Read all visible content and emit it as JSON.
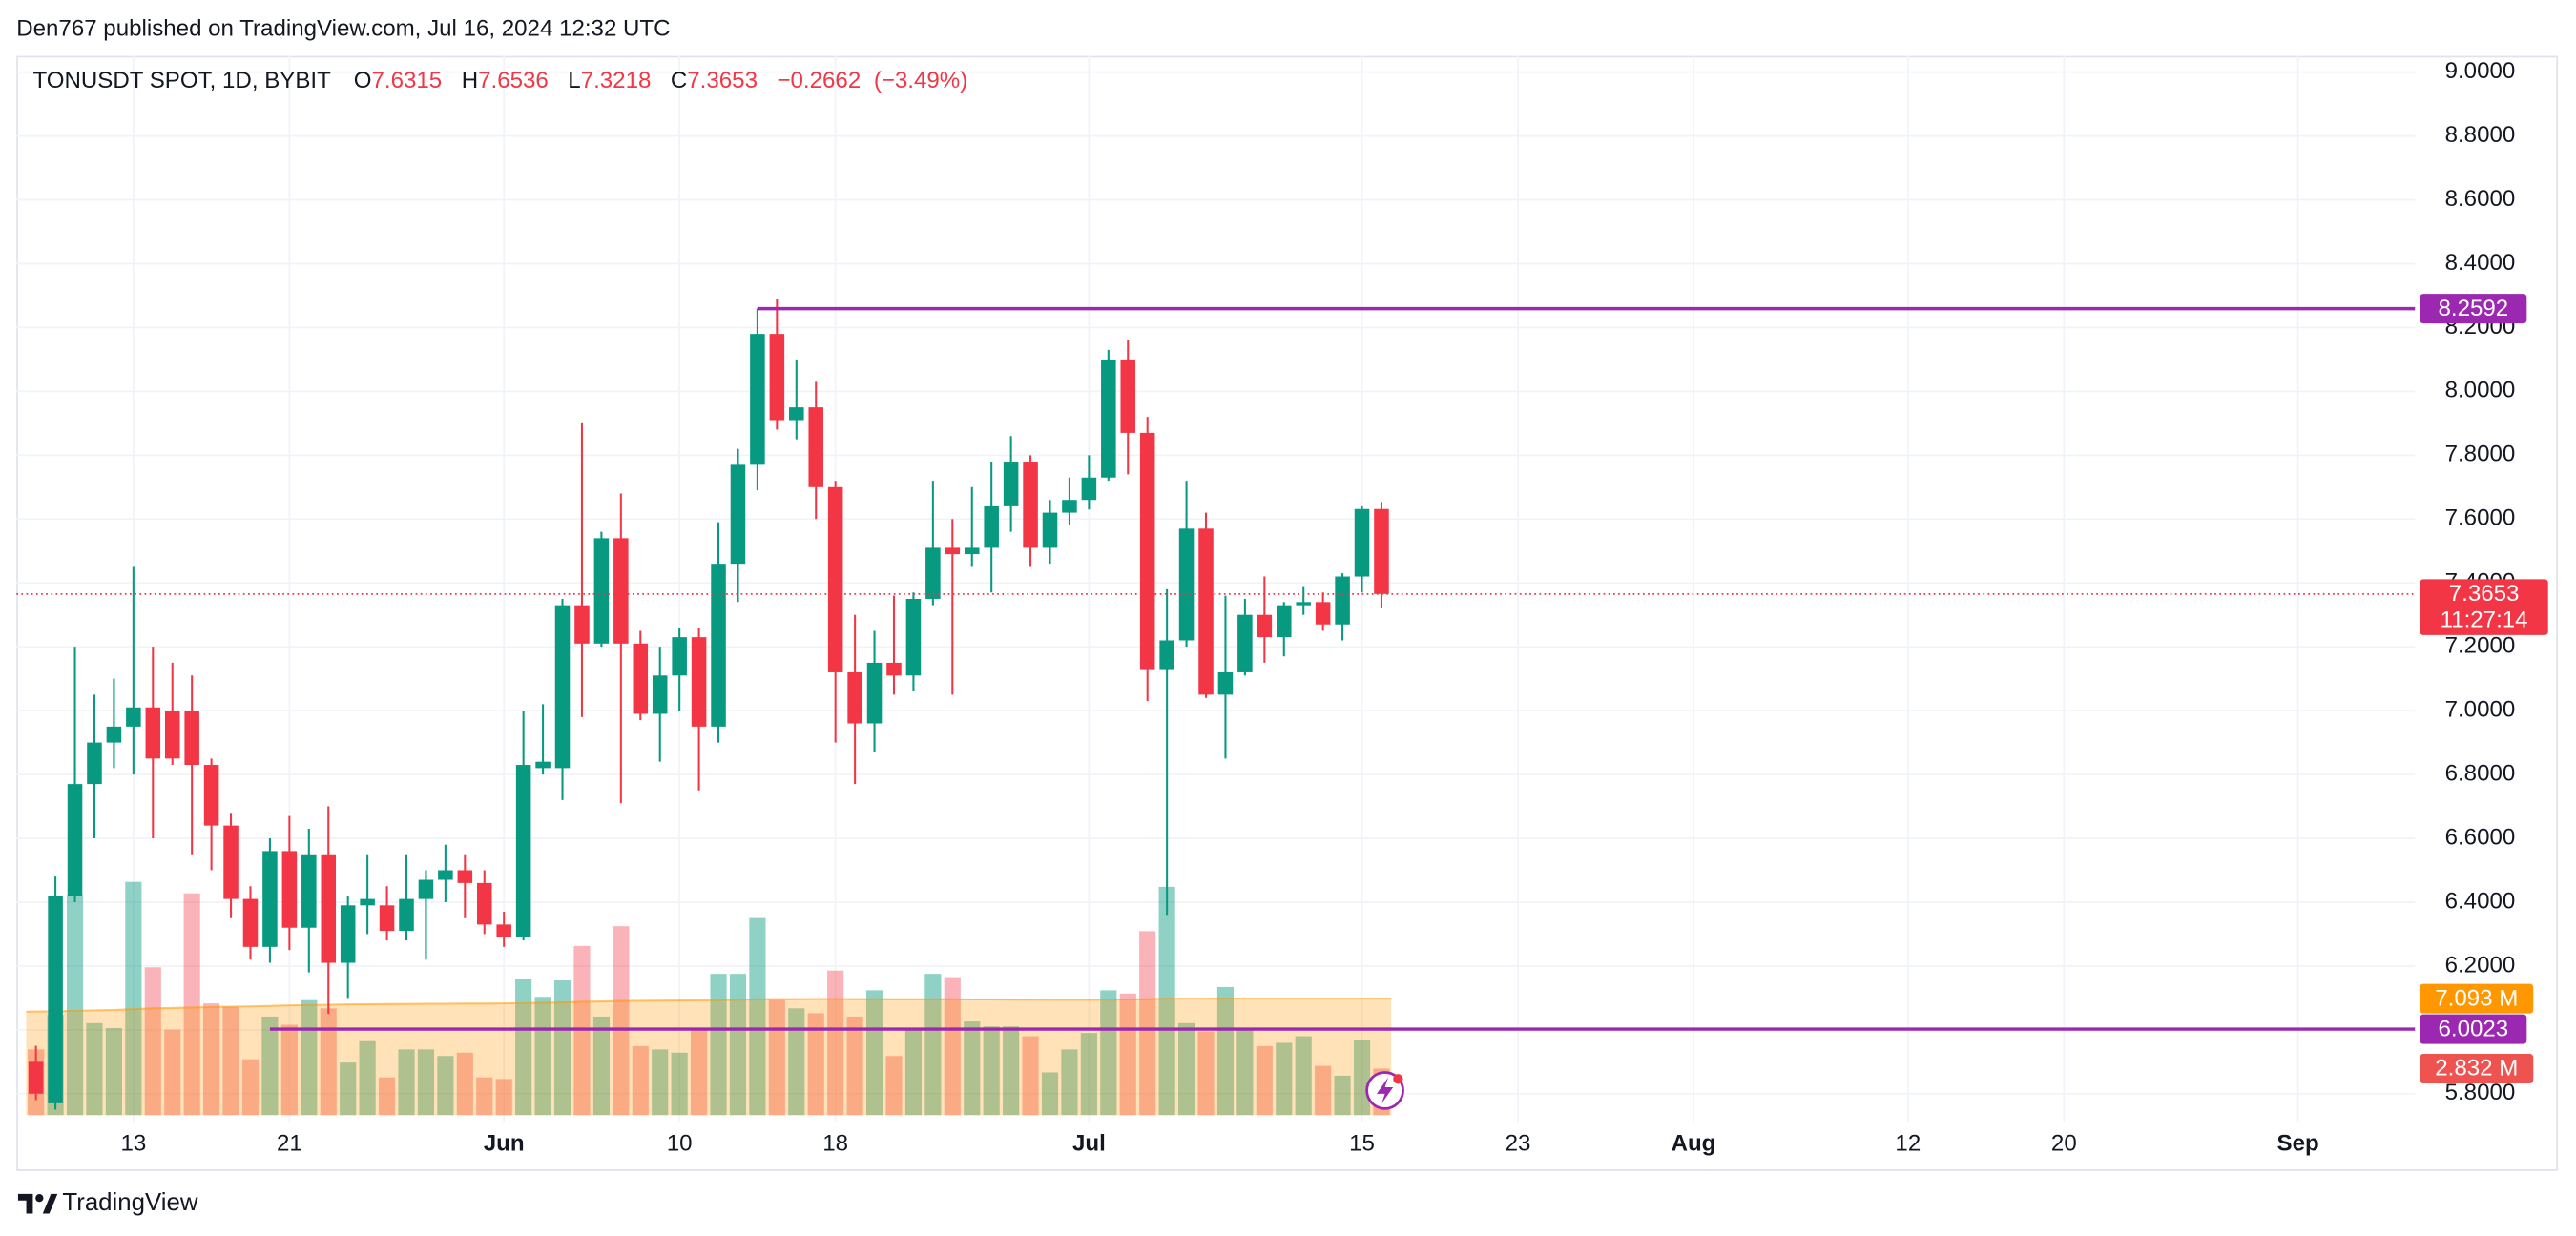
{
  "header": "Den767 published on TradingView.com, Jul 16, 2024 12:32 UTC",
  "brand": "TradingView",
  "chart_data": {
    "type": "candlestick",
    "symbol": "TONUSDT SPOT, 1D, BYBIT",
    "legend_keys": [
      "O",
      "H",
      "L",
      "C"
    ],
    "change": {
      "value": -0.2662,
      "label": "−0.2662"
    },
    "change_percent": {
      "value": -3.49,
      "label": "(−3.49%)"
    },
    "countdown": "11:27:14",
    "up_color": "#089981",
    "down_color": "#f23645",
    "x": [
      "2024-05-08",
      "2024-05-09",
      "2024-05-10",
      "2024-05-11",
      "2024-05-12",
      "2024-05-13",
      "2024-05-14",
      "2024-05-15",
      "2024-05-16",
      "2024-05-17",
      "2024-05-18",
      "2024-05-19",
      "2024-05-20",
      "2024-05-21",
      "2024-05-22",
      "2024-05-23",
      "2024-05-24",
      "2024-05-25",
      "2024-05-26",
      "2024-05-27",
      "2024-05-28",
      "2024-05-29",
      "2024-05-30",
      "2024-05-31",
      "2024-06-01",
      "2024-06-02",
      "2024-06-03",
      "2024-06-04",
      "2024-06-05",
      "2024-06-06",
      "2024-06-07",
      "2024-06-08",
      "2024-06-09",
      "2024-06-10",
      "2024-06-11",
      "2024-06-12",
      "2024-06-13",
      "2024-06-14",
      "2024-06-15",
      "2024-06-16",
      "2024-06-17",
      "2024-06-18",
      "2024-06-19",
      "2024-06-20",
      "2024-06-21",
      "2024-06-22",
      "2024-06-23",
      "2024-06-24",
      "2024-06-25",
      "2024-06-26",
      "2024-06-27",
      "2024-06-28",
      "2024-06-29",
      "2024-06-30",
      "2024-07-01",
      "2024-07-02",
      "2024-07-03",
      "2024-07-04",
      "2024-07-05",
      "2024-07-06",
      "2024-07-07",
      "2024-07-08",
      "2024-07-09",
      "2024-07-10",
      "2024-07-11",
      "2024-07-12",
      "2024-07-13",
      "2024-07-14",
      "2024-07-15",
      "2024-07-16"
    ],
    "open": [
      5.9,
      5.77,
      6.42,
      6.77,
      6.9,
      6.95,
      7.01,
      7.0,
      7.0,
      6.83,
      6.64,
      6.41,
      6.26,
      6.56,
      6.32,
      6.55,
      6.21,
      6.39,
      6.39,
      6.31,
      6.41,
      6.47,
      6.5,
      6.46,
      6.33,
      6.29,
      6.82,
      6.82,
      7.33,
      7.21,
      7.54,
      7.21,
      6.99,
      7.11,
      7.23,
      6.95,
      7.46,
      7.77,
      8.18,
      7.91,
      7.95,
      7.7,
      7.12,
      6.96,
      7.15,
      7.11,
      7.35,
      7.51,
      7.49,
      7.51,
      7.64,
      7.78,
      7.51,
      7.62,
      7.66,
      7.73,
      8.1,
      7.87,
      7.13,
      7.22,
      7.57,
      7.05,
      7.12,
      7.3,
      7.23,
      7.33,
      7.34,
      7.27,
      7.42,
      7.6315
    ],
    "high": [
      5.95,
      6.48,
      7.2,
      7.05,
      7.1,
      7.45,
      7.2,
      7.15,
      7.11,
      6.85,
      6.68,
      6.45,
      6.6,
      6.67,
      6.63,
      6.7,
      6.42,
      6.55,
      6.45,
      6.55,
      6.5,
      6.58,
      6.55,
      6.5,
      6.37,
      7.0,
      7.02,
      7.35,
      7.9,
      7.56,
      7.68,
      7.25,
      7.2,
      7.26,
      7.26,
      7.59,
      7.82,
      8.26,
      8.29,
      8.1,
      8.03,
      7.72,
      7.3,
      7.25,
      7.36,
      7.37,
      7.72,
      7.6,
      7.7,
      7.78,
      7.86,
      7.8,
      7.66,
      7.73,
      7.8,
      8.13,
      8.16,
      7.92,
      7.38,
      7.72,
      7.62,
      7.36,
      7.35,
      7.42,
      7.34,
      7.39,
      7.37,
      7.43,
      7.64,
      7.6536
    ],
    "low": [
      5.78,
      5.75,
      6.4,
      6.6,
      6.82,
      6.8,
      6.6,
      6.83,
      6.55,
      6.5,
      6.35,
      6.22,
      6.21,
      6.25,
      6.18,
      6.05,
      6.1,
      6.3,
      6.28,
      6.28,
      6.22,
      6.4,
      6.35,
      6.3,
      6.26,
      6.28,
      6.8,
      6.72,
      6.98,
      7.2,
      6.71,
      6.97,
      6.84,
      7.0,
      6.75,
      6.9,
      7.34,
      7.69,
      7.88,
      7.85,
      7.6,
      6.9,
      6.77,
      6.87,
      7.05,
      7.06,
      7.33,
      7.05,
      7.45,
      7.37,
      7.56,
      7.45,
      7.46,
      7.58,
      7.63,
      7.72,
      7.74,
      7.03,
      6.36,
      7.2,
      7.04,
      6.85,
      7.11,
      7.15,
      7.17,
      7.3,
      7.25,
      7.22,
      7.37,
      7.3218
    ],
    "close": [
      5.8,
      6.42,
      6.77,
      6.9,
      6.95,
      7.01,
      6.85,
      6.85,
      6.83,
      6.64,
      6.41,
      6.26,
      6.56,
      6.32,
      6.55,
      6.21,
      6.39,
      6.41,
      6.31,
      6.41,
      6.47,
      6.5,
      6.46,
      6.33,
      6.29,
      6.83,
      6.84,
      7.33,
      7.21,
      7.54,
      7.21,
      6.99,
      7.11,
      7.23,
      6.95,
      7.46,
      7.77,
      8.18,
      7.91,
      7.95,
      7.7,
      7.12,
      6.96,
      7.15,
      7.11,
      7.35,
      7.51,
      7.49,
      7.51,
      7.64,
      7.78,
      7.51,
      7.62,
      7.66,
      7.73,
      8.1,
      7.87,
      7.13,
      7.22,
      7.57,
      7.05,
      7.12,
      7.3,
      7.23,
      7.33,
      7.34,
      7.27,
      7.42,
      7.6315,
      7.3653
    ],
    "volume": [
      4.0,
      6.1,
      13.4,
      5.6,
      5.3,
      14.2,
      9.0,
      5.2,
      13.5,
      6.8,
      6.6,
      3.4,
      6.0,
      5.5,
      7.0,
      6.5,
      3.2,
      4.5,
      2.3,
      4.0,
      4.0,
      3.6,
      3.8,
      2.3,
      2.2,
      8.3,
      7.2,
      8.2,
      10.3,
      6.0,
      11.5,
      4.2,
      4.0,
      3.8,
      5.2,
      8.6,
      8.6,
      12.0,
      7.0,
      6.5,
      6.2,
      8.8,
      6.0,
      7.6,
      3.6,
      5.2,
      8.6,
      8.4,
      5.7,
      5.4,
      5.4,
      4.8,
      2.6,
      4.0,
      5.0,
      7.6,
      7.4,
      11.2,
      13.9,
      5.6,
      5.1,
      7.8,
      5.2,
      4.2,
      4.4,
      4.8,
      3.0,
      2.4,
      4.6,
      2.832
    ],
    "volume_ma": [
      6.3,
      6.32,
      6.35,
      6.38,
      6.4,
      6.45,
      6.5,
      6.52,
      6.55,
      6.58,
      6.6,
      6.62,
      6.65,
      6.68,
      6.7,
      6.72,
      6.74,
      6.75,
      6.76,
      6.77,
      6.78,
      6.78,
      6.79,
      6.79,
      6.8,
      6.82,
      6.84,
      6.86,
      6.9,
      6.92,
      6.95,
      6.96,
      6.97,
      6.98,
      6.99,
      7.0,
      7.02,
      7.05,
      7.06,
      7.06,
      7.07,
      7.07,
      7.06,
      7.06,
      7.05,
      7.05,
      7.05,
      7.05,
      7.04,
      7.04,
      7.03,
      7.03,
      7.02,
      7.02,
      7.02,
      7.03,
      7.04,
      7.06,
      7.09,
      7.09,
      7.09,
      7.1,
      7.1,
      7.1,
      7.1,
      7.1,
      7.1,
      7.1,
      7.1,
      7.093
    ],
    "volume_ma_label": "7.093 M",
    "volume_label": "2.832 M",
    "volume_lim": [
      0,
      64.5
    ],
    "ylim": [
      5.733,
      9.051
    ],
    "yticks": [
      {
        "value": 5.8,
        "label": "5.8000"
      },
      {
        "value": 6.0,
        "label": "6.0000"
      },
      {
        "value": 6.2,
        "label": "6.2000"
      },
      {
        "value": 6.4,
        "label": "6.4000"
      },
      {
        "value": 6.6,
        "label": "6.6000"
      },
      {
        "value": 6.8,
        "label": "6.8000"
      },
      {
        "value": 7.0,
        "label": "7.0000"
      },
      {
        "value": 7.2,
        "label": "7.2000"
      },
      {
        "value": 7.4,
        "label": "7.4000"
      },
      {
        "value": 7.6,
        "label": "7.6000"
      },
      {
        "value": 7.8,
        "label": "7.8000"
      },
      {
        "value": 8.0,
        "label": "8.0000"
      },
      {
        "value": 8.2,
        "label": "8.2000"
      },
      {
        "value": 8.4,
        "label": "8.4000"
      },
      {
        "value": 8.6,
        "label": "8.6000"
      },
      {
        "value": 8.8,
        "label": "8.8000"
      },
      {
        "value": 9.0,
        "label": "9.0000"
      }
    ],
    "xlim": [
      "2024-05-07",
      "2024-09-07"
    ],
    "xticks": [
      {
        "value": "2024-05-13",
        "label": "13"
      },
      {
        "value": "2024-05-21",
        "label": "21"
      },
      {
        "value": "2024-06-01",
        "label": "Jun"
      },
      {
        "value": "2024-06-10",
        "label": "10"
      },
      {
        "value": "2024-06-18",
        "label": "18"
      },
      {
        "value": "2024-07-01",
        "label": "Jul"
      },
      {
        "value": "2024-07-15",
        "label": "15"
      },
      {
        "value": "2024-07-23",
        "label": "23"
      },
      {
        "value": "2024-08-01",
        "label": "Aug"
      },
      {
        "value": "2024-08-12",
        "label": "12"
      },
      {
        "value": "2024-08-20",
        "label": "20"
      },
      {
        "value": "2024-09-01",
        "label": "Sep"
      }
    ],
    "grid": true,
    "hlines": [
      {
        "value": 8.2592,
        "from": "2024-06-14",
        "color": "#9c27b0"
      },
      {
        "value": 6.0023,
        "from": "2024-05-20",
        "color": "#9c27b0"
      }
    ]
  }
}
